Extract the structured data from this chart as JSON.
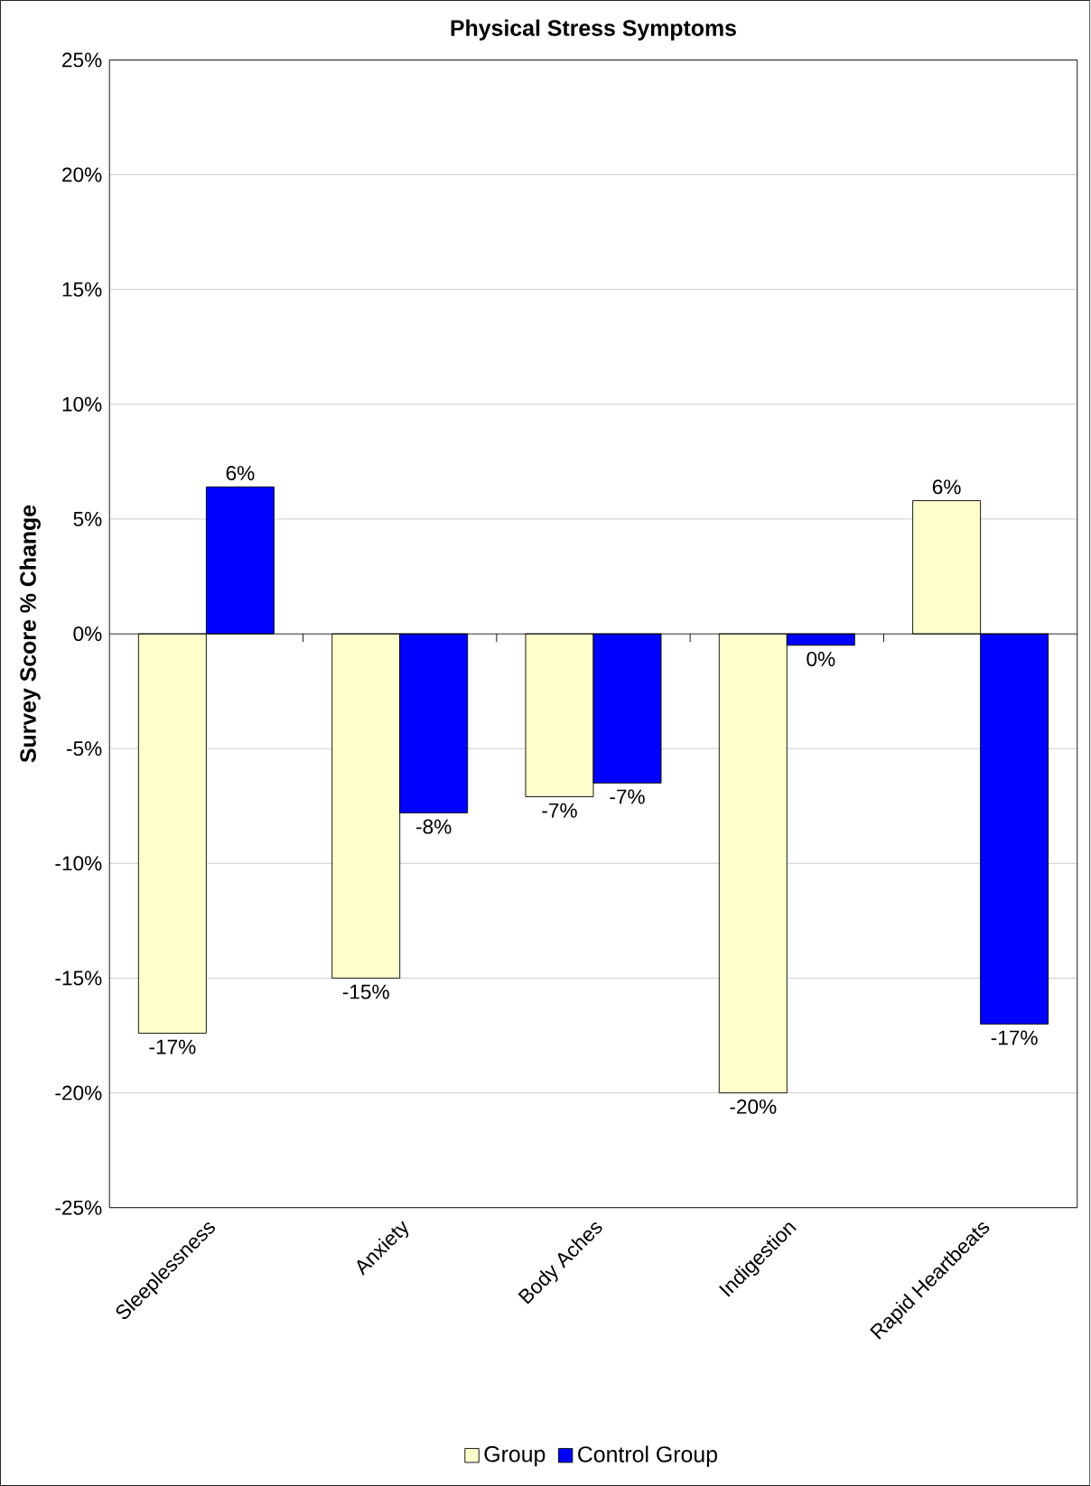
{
  "chart_data": {
    "type": "bar",
    "title": "Physical Stress Symptoms",
    "ylabel": "Survey Score % Change",
    "categories": [
      "Sleeplessness",
      "Anxiety",
      "Body Aches",
      "Indigestion",
      "Rapid Heartbeats"
    ],
    "series": [
      {
        "name": "Group",
        "color": "#ffffcc",
        "values": [
          -17.4,
          -15,
          -7.1,
          -20,
          5.8
        ],
        "value_labels": [
          "-17%",
          "-15%",
          "-7%",
          "-20%",
          "6%"
        ]
      },
      {
        "name": "Control Group",
        "color": "#0000ff",
        "values": [
          6.4,
          -7.8,
          -6.5,
          -0.5,
          -17
        ],
        "value_labels": [
          "6%",
          "-8%",
          "-7%",
          "0%",
          "-17%"
        ]
      }
    ],
    "ylim": [
      -25,
      25
    ],
    "yticks": [
      {
        "value": -25,
        "label": "-25%"
      },
      {
        "value": -20,
        "label": "-20%"
      },
      {
        "value": -15,
        "label": "-15%"
      },
      {
        "value": -10,
        "label": "-10%"
      },
      {
        "value": -5,
        "label": "-5%"
      },
      {
        "value": 0,
        "label": "0%"
      },
      {
        "value": 5,
        "label": "5%"
      },
      {
        "value": 10,
        "label": "10%"
      },
      {
        "value": 15,
        "label": "15%"
      },
      {
        "value": 20,
        "label": "20%"
      },
      {
        "value": 25,
        "label": "25%"
      }
    ],
    "grid": "y",
    "legend": "bottom"
  }
}
